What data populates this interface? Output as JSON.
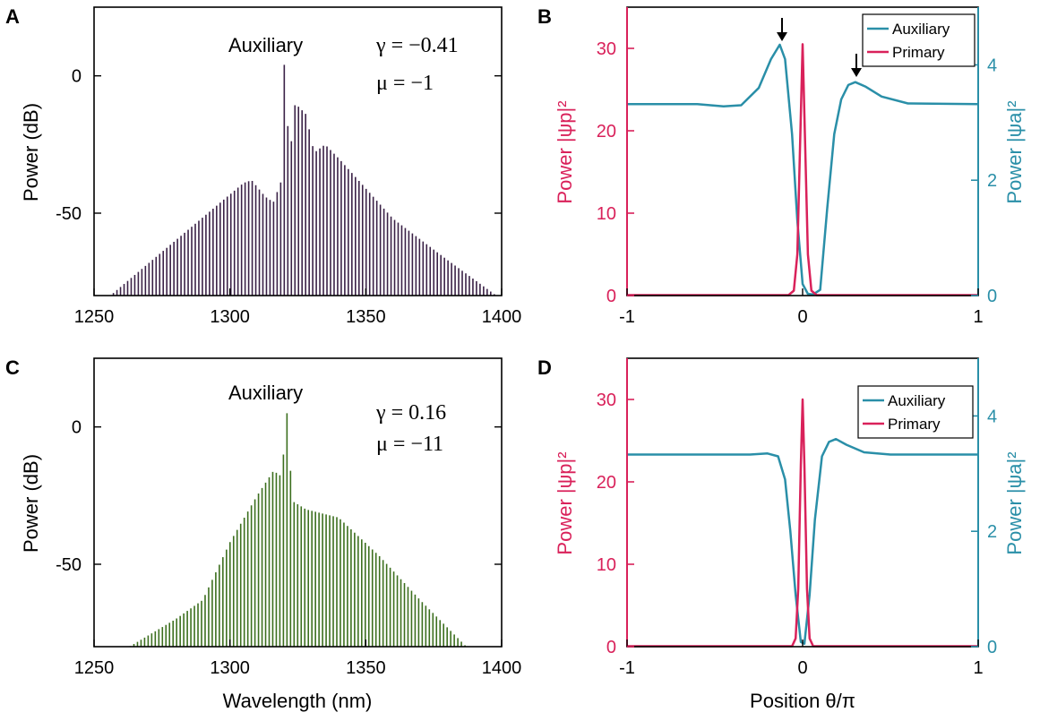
{
  "colors": {
    "primary": "#d9215a",
    "auxiliary": "#2a8fa8",
    "spectrumA": "#3a2146",
    "spectrumC": "#3c6f1e"
  },
  "chart_data": [
    {
      "panel": "A",
      "type": "bar",
      "annotation_label": "Auxiliary",
      "params": {
        "gamma": "γ = −0.41",
        "mu": "μ = −1"
      },
      "xlabel": "",
      "ylabel": "Power (dB)",
      "xlim": [
        1250,
        1400
      ],
      "ylim": [
        -80,
        25
      ],
      "xticks": [
        "1250",
        "1300",
        "1350",
        "1400"
      ],
      "yticks": [
        "0",
        "-50"
      ],
      "comb": {
        "start": 1256,
        "end": 1398,
        "center": 1320,
        "center_value": 4,
        "profile": [
          [
            1256,
            -80
          ],
          [
            1305,
            -39
          ],
          [
            1308,
            -38
          ],
          [
            1313,
            -44
          ],
          [
            1316,
            -46
          ],
          [
            1319,
            -38
          ],
          [
            1320,
            4
          ],
          [
            1322,
            -30
          ],
          [
            1324,
            -10
          ],
          [
            1328,
            -14
          ],
          [
            1331,
            -28
          ],
          [
            1335,
            -25
          ],
          [
            1340,
            -30
          ],
          [
            1360,
            -52
          ],
          [
            1380,
            -67
          ],
          [
            1398,
            -80
          ]
        ]
      }
    },
    {
      "panel": "B",
      "type": "line",
      "xlabel": "",
      "ylabel_left": "Power |ψp|²",
      "ylabel_right": "Power |ψa|²",
      "xlim": [
        -1,
        1
      ],
      "ylim_left": [
        0,
        35
      ],
      "ylim_right": [
        0,
        5
      ],
      "xticks": [
        "-1",
        "0",
        "1"
      ],
      "yticks_left": [
        "0",
        "10",
        "20",
        "30"
      ],
      "yticks_right": [
        "0",
        "2",
        "4"
      ],
      "legend": [
        "Auxiliary",
        "Primary"
      ],
      "series": [
        {
          "name": "Auxiliary",
          "axis": "right",
          "points": [
            [
              -1,
              3.32
            ],
            [
              -0.6,
              3.32
            ],
            [
              -0.45,
              3.28
            ],
            [
              -0.35,
              3.3
            ],
            [
              -0.25,
              3.6
            ],
            [
              -0.18,
              4.1
            ],
            [
              -0.13,
              4.35
            ],
            [
              -0.1,
              4.1
            ],
            [
              -0.06,
              2.8
            ],
            [
              -0.03,
              1.3
            ],
            [
              0,
              0.2
            ],
            [
              0.03,
              0.03
            ],
            [
              0.06,
              0.02
            ],
            [
              0.1,
              0.1
            ],
            [
              0.14,
              1.5
            ],
            [
              0.18,
              2.8
            ],
            [
              0.22,
              3.4
            ],
            [
              0.26,
              3.65
            ],
            [
              0.3,
              3.7
            ],
            [
              0.36,
              3.62
            ],
            [
              0.45,
              3.45
            ],
            [
              0.6,
              3.33
            ],
            [
              1,
              3.32
            ]
          ]
        },
        {
          "name": "Primary",
          "axis": "left",
          "points": [
            [
              -1,
              0.05
            ],
            [
              -0.08,
              0.05
            ],
            [
              -0.05,
              0.6
            ],
            [
              -0.03,
              5
            ],
            [
              -0.015,
              18
            ],
            [
              0,
              30.5
            ],
            [
              0.015,
              18
            ],
            [
              0.03,
              5
            ],
            [
              0.05,
              0.6
            ],
            [
              0.08,
              0.05
            ],
            [
              1,
              0.05
            ]
          ]
        }
      ]
    },
    {
      "panel": "C",
      "type": "bar",
      "annotation_label": "Auxiliary",
      "params": {
        "gamma": "γ = 0.16",
        "mu": "μ = −11"
      },
      "xlabel": "Wavelength (nm)",
      "ylabel": "Power (dB)",
      "xlim": [
        1250,
        1400
      ],
      "ylim": [
        -80,
        25
      ],
      "xticks": [
        "1250",
        "1300",
        "1350",
        "1400"
      ],
      "yticks": [
        "0",
        "-50"
      ],
      "comb": {
        "start": 1263,
        "end": 1387,
        "center": 1321,
        "center_value": 5,
        "profile": [
          [
            1263,
            -80
          ],
          [
            1280,
            -70
          ],
          [
            1290,
            -63
          ],
          [
            1300,
            -42
          ],
          [
            1310,
            -25
          ],
          [
            1316,
            -16
          ],
          [
            1319,
            -18
          ],
          [
            1321,
            5
          ],
          [
            1323,
            -27
          ],
          [
            1328,
            -30
          ],
          [
            1340,
            -33
          ],
          [
            1355,
            -47
          ],
          [
            1370,
            -63
          ],
          [
            1380,
            -73
          ],
          [
            1387,
            -80
          ]
        ]
      }
    },
    {
      "panel": "D",
      "type": "line",
      "xlabel": "Position θ/π",
      "ylabel_left": "Power |ψp|²",
      "ylabel_right": "Power |ψa|²",
      "xlim": [
        -1,
        1
      ],
      "ylim_left": [
        0,
        35
      ],
      "ylim_right": [
        0,
        5
      ],
      "xticks": [
        "-1",
        "0",
        "1"
      ],
      "yticks_left": [
        "0",
        "10",
        "20",
        "30"
      ],
      "yticks_right": [
        "0",
        "2",
        "4"
      ],
      "legend": [
        "Auxiliary",
        "Primary"
      ],
      "series": [
        {
          "name": "Auxiliary",
          "axis": "right",
          "points": [
            [
              -1,
              3.33
            ],
            [
              -0.3,
              3.33
            ],
            [
              -0.2,
              3.35
            ],
            [
              -0.14,
              3.3
            ],
            [
              -0.1,
              2.9
            ],
            [
              -0.07,
              2.0
            ],
            [
              -0.04,
              0.9
            ],
            [
              -0.01,
              0.08
            ],
            [
              0.01,
              0.05
            ],
            [
              0.04,
              0.9
            ],
            [
              0.07,
              2.2
            ],
            [
              0.11,
              3.3
            ],
            [
              0.15,
              3.55
            ],
            [
              0.19,
              3.6
            ],
            [
              0.25,
              3.5
            ],
            [
              0.35,
              3.37
            ],
            [
              0.5,
              3.33
            ],
            [
              1,
              3.33
            ]
          ]
        },
        {
          "name": "Primary",
          "axis": "left",
          "points": [
            [
              -1,
              0.05
            ],
            [
              -0.06,
              0.05
            ],
            [
              -0.04,
              1
            ],
            [
              -0.025,
              7
            ],
            [
              -0.01,
              22
            ],
            [
              0,
              30
            ],
            [
              0.01,
              22
            ],
            [
              0.025,
              7
            ],
            [
              0.04,
              1
            ],
            [
              0.06,
              0.05
            ],
            [
              1,
              0.05
            ]
          ]
        }
      ]
    }
  ]
}
